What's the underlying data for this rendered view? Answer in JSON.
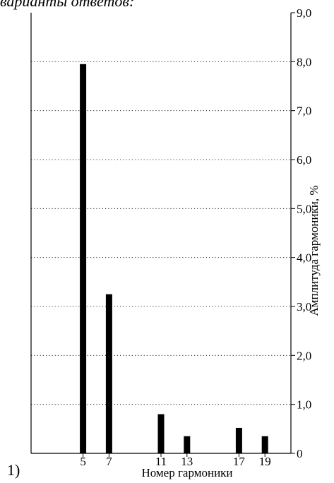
{
  "header": {
    "partial_text": "варианты ответов:"
  },
  "panel_label": "1)",
  "chart_data": {
    "type": "bar",
    "categories": [
      "5",
      "7",
      "11",
      "13",
      "17",
      "19"
    ],
    "values": [
      7.95,
      3.25,
      0.8,
      0.35,
      0.52,
      0.35
    ],
    "xlabel": "Номер гармоники",
    "ylabel": "Амплитуда гармоники, %",
    "ylim": [
      0,
      9
    ],
    "yticks": [
      "0",
      "1,0",
      "2,0",
      "3,0",
      "4,0",
      "5,0",
      "6,0",
      "7,0",
      "8,0",
      "9,0"
    ],
    "x_axis_range": [
      1,
      21
    ],
    "y_axis_side": "right",
    "grid": "horizontal dotted",
    "bar_color": "#000000"
  }
}
